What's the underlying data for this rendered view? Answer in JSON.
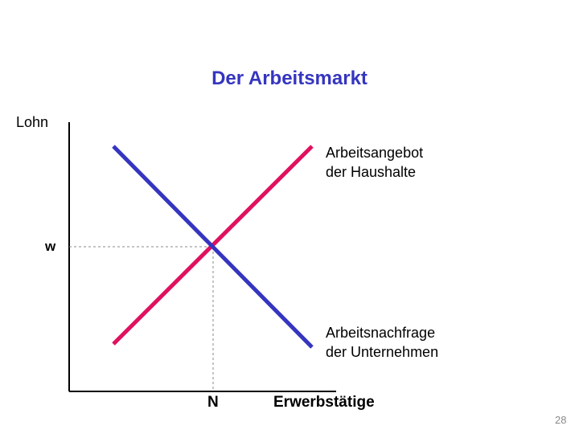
{
  "title": "Der Arbeitsmarkt",
  "axes": {
    "y_label": "Lohn",
    "x_label": "Erwerbstätige",
    "equilibrium_wage_label": "w",
    "equilibrium_quantity_label": "N"
  },
  "curves": {
    "supply": {
      "line1": "Arbeitsangebot",
      "line2": "der Haushalte",
      "color": "#e0115f"
    },
    "demand": {
      "line1": "Arbeitsnachfrage",
      "line2": "der Unternehmen",
      "color": "#3535c0"
    }
  },
  "page_number": "28"
}
